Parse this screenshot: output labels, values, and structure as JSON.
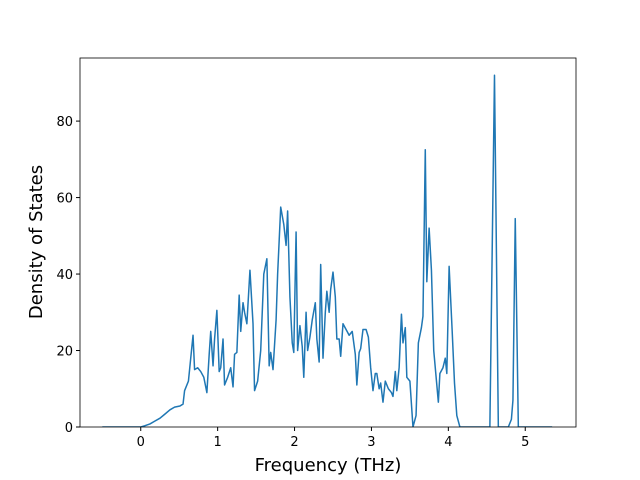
{
  "chart_data": {
    "type": "line",
    "xlabel": "Frequency (THz)",
    "ylabel": "Density of States",
    "xlim": [
      -0.79,
      5.66
    ],
    "ylim": [
      0,
      96.5
    ],
    "xticks": [
      0,
      1,
      2,
      3,
      4,
      5
    ],
    "yticks": [
      0,
      20,
      40,
      60,
      80
    ],
    "grid": false,
    "color": "#1f77b4",
    "x": [
      -0.5,
      0,
      0.05,
      0.12,
      0.18,
      0.25,
      0.31,
      0.38,
      0.44,
      0.51,
      0.55,
      0.57,
      0.62,
      0.68,
      0.7,
      0.74,
      0.78,
      0.82,
      0.86,
      0.89,
      0.91,
      0.94,
      0.96,
      0.99,
      1.02,
      1.04,
      1.07,
      1.09,
      1.13,
      1.17,
      1.2,
      1.22,
      1.25,
      1.28,
      1.3,
      1.33,
      1.35,
      1.38,
      1.42,
      1.46,
      1.48,
      1.52,
      1.56,
      1.6,
      1.64,
      1.67,
      1.69,
      1.72,
      1.76,
      1.78,
      1.82,
      1.86,
      1.89,
      1.91,
      1.94,
      1.97,
      1.99,
      2.02,
      2.04,
      2.07,
      2.1,
      2.12,
      2.15,
      2.17,
      2.2,
      2.23,
      2.27,
      2.29,
      2.32,
      2.34,
      2.37,
      2.4,
      2.42,
      2.45,
      2.47,
      2.5,
      2.53,
      2.55,
      2.58,
      2.6,
      2.63,
      2.67,
      2.71,
      2.75,
      2.79,
      2.81,
      2.84,
      2.86,
      2.89,
      2.93,
      2.96,
      2.99,
      3.02,
      3.05,
      3.07,
      3.1,
      3.12,
      3.15,
      3.18,
      3.22,
      3.26,
      3.28,
      3.31,
      3.33,
      3.36,
      3.39,
      3.41,
      3.44,
      3.46,
      3.5,
      3.54,
      3.58,
      3.61,
      3.65,
      3.67,
      3.7,
      3.72,
      3.75,
      3.78,
      3.81,
      3.87,
      3.89,
      3.93,
      3.96,
      3.98,
      4.01,
      4.05,
      4.08,
      4.11,
      4.15,
      4.54,
      4.6,
      4.65,
      4.78,
      4.82,
      4.84,
      4.87,
      4.91,
      5.35
    ],
    "values": [
      0,
      0,
      0.3,
      0.8,
      1.5,
      2.3,
      3.3,
      4.5,
      5.2,
      5.5,
      6,
      9.5,
      12,
      24,
      15,
      15.5,
      14.5,
      13,
      9,
      19,
      25,
      16,
      23,
      30.5,
      14.5,
      15.5,
      23,
      11,
      13,
      15.5,
      10.5,
      19,
      19.5,
      34.5,
      25,
      32.5,
      30,
      27,
      41,
      27,
      9.5,
      12,
      20,
      40,
      44,
      16,
      19.5,
      15,
      28,
      40,
      57.5,
      53,
      47.5,
      56.5,
      34,
      22,
      19.5,
      51,
      20,
      26.5,
      21,
      13,
      30,
      20,
      23.5,
      28,
      32.5,
      23,
      17,
      42.5,
      18,
      30,
      35.5,
      30,
      36,
      40.5,
      34,
      23,
      23,
      18.5,
      27,
      25.5,
      24,
      25,
      19,
      11,
      19.5,
      20.5,
      25.5,
      25.5,
      23.5,
      15.5,
      9.5,
      14,
      14,
      10,
      11.5,
      6.5,
      12,
      10,
      9,
      8,
      14.5,
      9.5,
      15.5,
      29.5,
      22,
      26,
      13,
      12,
      0,
      3,
      22,
      26,
      29,
      72.5,
      38,
      52,
      41,
      20,
      6.5,
      14,
      15.5,
      18,
      14,
      42,
      25,
      11.5,
      3,
      0,
      0,
      92,
      0,
      0,
      2,
      7,
      54.5,
      0,
      0
    ]
  }
}
